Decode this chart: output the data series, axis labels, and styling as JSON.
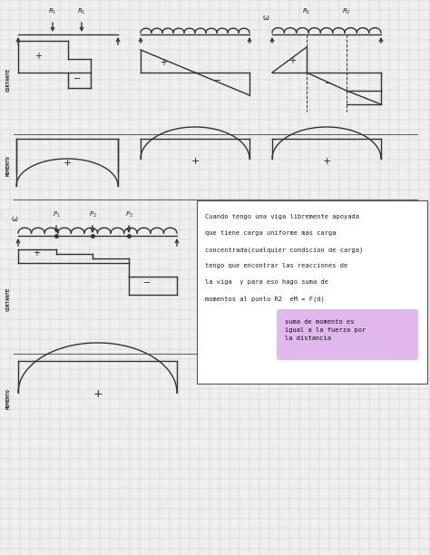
{
  "bg_color": "#efefef",
  "line_color": "#333333",
  "text_color": "#222222",
  "highlight_color": "#d8a0e8",
  "fig_width": 4.74,
  "fig_height": 6.12,
  "note_line1": "Cuando tengo una viga libremente apoyada",
  "note_line2": "que tiene carga uniforme mas carga",
  "note_line3": "concentrada(cualquier condicion de carga)",
  "note_line4": "tengo que encontrar las reacciones de",
  "note_line5": "la viga  y para eso hago suma de",
  "note_line6": "momentos al punto R2  eM = F(d)",
  "note_highlight": "suma de momento es\nigual a la fuerza por\nla distancia"
}
